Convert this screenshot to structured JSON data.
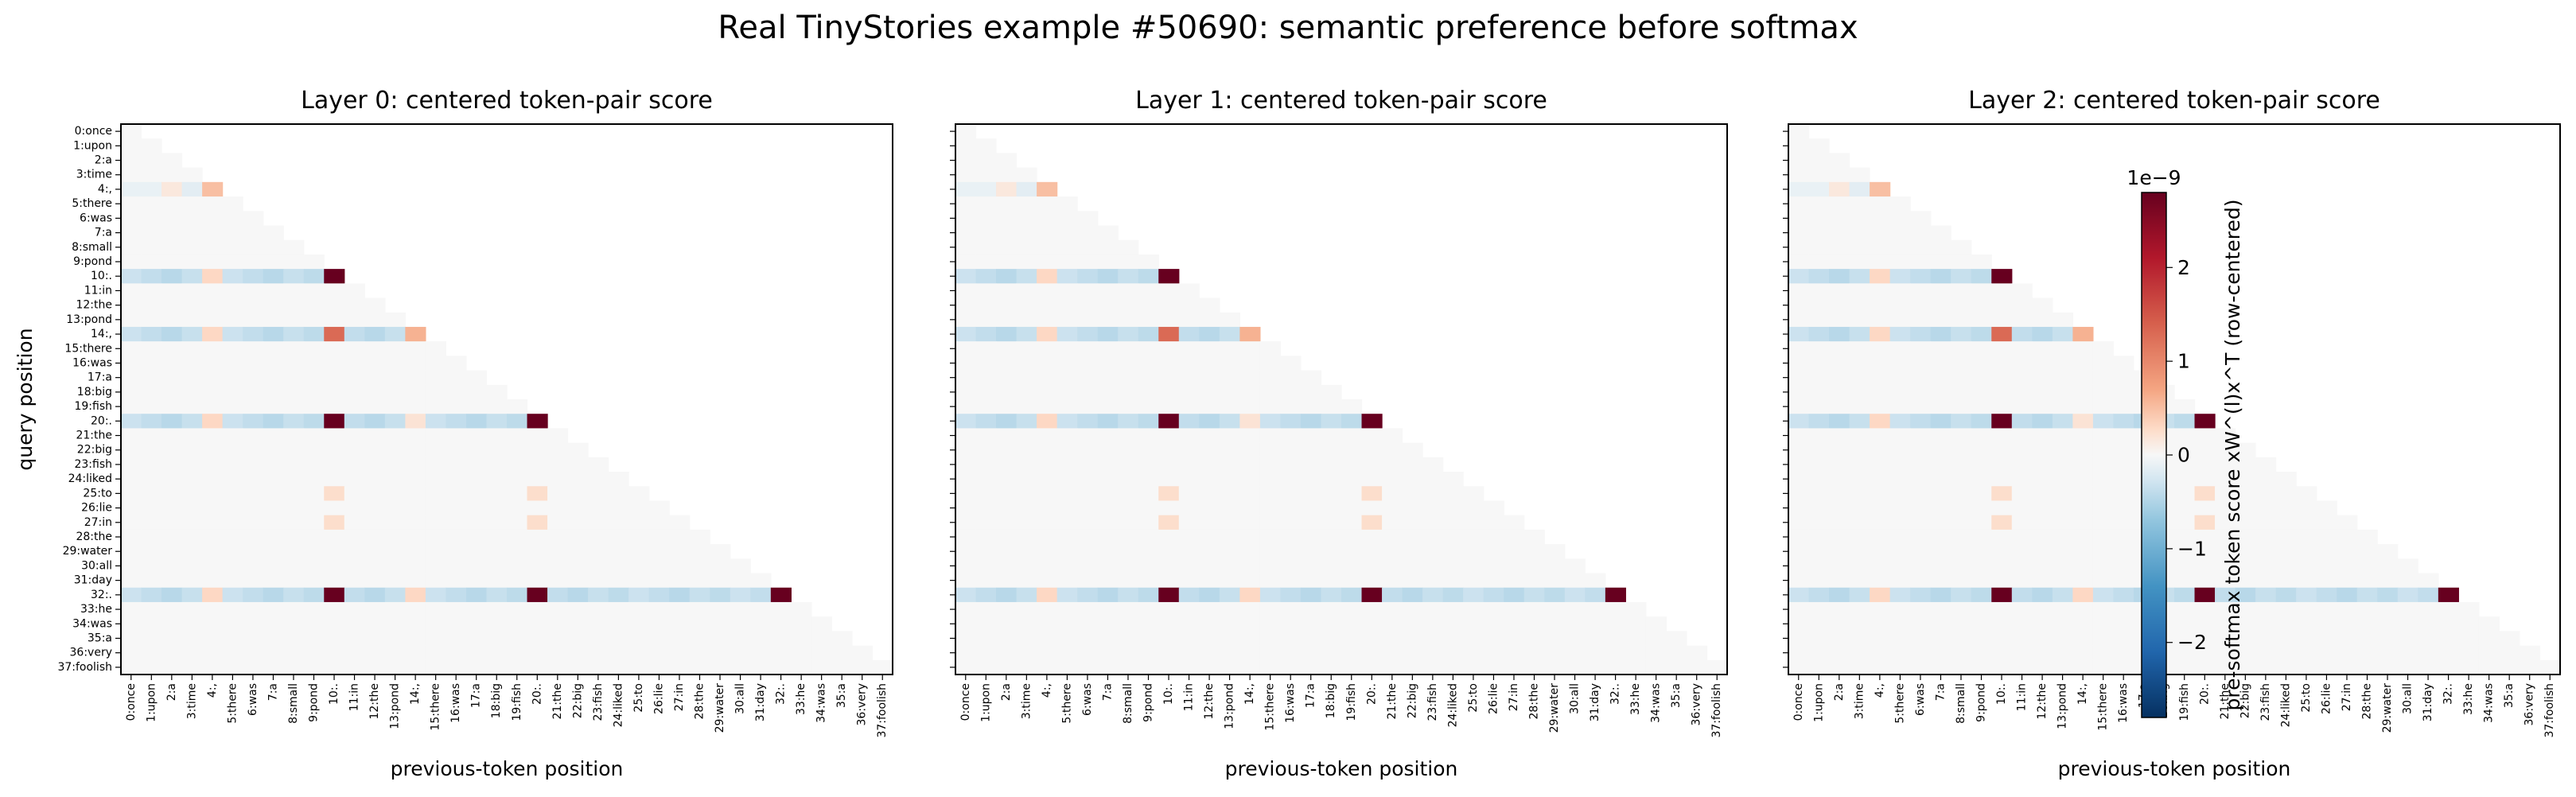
{
  "figure_title": "Real TinyStories example #50690: semantic preference before softmax",
  "colors": {
    "neg_strong": "#053061",
    "neutral": "#f7f7f7",
    "pos_strong": "#67001f",
    "frame": "#000000"
  },
  "chart_data": [
    {
      "type": "heatmap",
      "title": "Layer 0: centered token-pair score",
      "xlabel": "previous-token position",
      "ylabel": "query position",
      "show_y_tick_labels": true
    },
    {
      "type": "heatmap",
      "title": "Layer 1: centered token-pair score",
      "xlabel": "previous-token position",
      "ylabel": "",
      "show_y_tick_labels": false
    },
    {
      "type": "heatmap",
      "title": "Layer 2: centered token-pair score",
      "xlabel": "previous-token position",
      "ylabel": "",
      "show_y_tick_labels": false
    }
  ],
  "tokens": [
    "0:once",
    "1:upon",
    "2:a",
    "3:time",
    "4:,",
    "5:there",
    "6:was",
    "7:a",
    "8:small",
    "9:pond",
    "10:.",
    "11:in",
    "12:the",
    "13:pond",
    "14:,",
    "15:there",
    "16:was",
    "17:a",
    "18:big",
    "19:fish",
    "20:.",
    "21:the",
    "22:big",
    "23:fish",
    "24:liked",
    "25:to",
    "26:lie",
    "27:in",
    "28:the",
    "29:water",
    "30:all",
    "31:day",
    "32:.",
    "33:he",
    "34:was",
    "35:a",
    "36:very",
    "37:foolish"
  ],
  "heatmap": {
    "mask": "lower-triangular (key position <= query position)",
    "default_value": 0.0,
    "strong_rows": [
      10,
      14,
      20,
      32
    ],
    "strong_row_baseline": -0.45,
    "strong_cells": [
      {
        "row": 10,
        "col": 10,
        "value": 3.0
      },
      {
        "row": 14,
        "col": 10,
        "value": 1.3
      },
      {
        "row": 14,
        "col": 14,
        "value": 0.6
      },
      {
        "row": 4,
        "col": 4,
        "value": 0.5
      },
      {
        "row": 20,
        "col": 10,
        "value": 3.0
      },
      {
        "row": 20,
        "col": 20,
        "value": 3.0
      },
      {
        "row": 32,
        "col": 10,
        "value": 3.0
      },
      {
        "row": 32,
        "col": 20,
        "value": 3.0
      },
      {
        "row": 32,
        "col": 32,
        "value": 3.0
      },
      {
        "row": 25,
        "col": 10,
        "value": 0.25
      },
      {
        "row": 25,
        "col": 20,
        "value": 0.25
      },
      {
        "row": 27,
        "col": 10,
        "value": 0.25
      },
      {
        "row": 27,
        "col": 20,
        "value": 0.25
      }
    ],
    "cell_overrides": [
      {
        "row": 10,
        "col": 4,
        "value": 0.3
      },
      {
        "row": 14,
        "col": 4,
        "value": 0.3
      },
      {
        "row": 20,
        "col": 4,
        "value": 0.3
      },
      {
        "row": 32,
        "col": 4,
        "value": 0.3
      },
      {
        "row": 20,
        "col": 14,
        "value": 0.2
      },
      {
        "row": 32,
        "col": 14,
        "value": 0.3
      },
      {
        "row": 4,
        "col": 2,
        "value": 0.15
      },
      {
        "row": 4,
        "col": 3,
        "value": -0.15
      },
      {
        "row": 4,
        "col": 0,
        "value": -0.1
      },
      {
        "row": 4,
        "col": 1,
        "value": -0.1
      }
    ]
  },
  "colorbar": {
    "label": "pre-softmax token score xW^(l)x^T (row-centered)",
    "exponent": "1e−9",
    "min": -2.8,
    "max": 2.8,
    "ticks": [
      -2,
      -1,
      0,
      1,
      2
    ],
    "tick_labels": [
      "−2",
      "−1",
      "0",
      "1",
      "2"
    ]
  }
}
